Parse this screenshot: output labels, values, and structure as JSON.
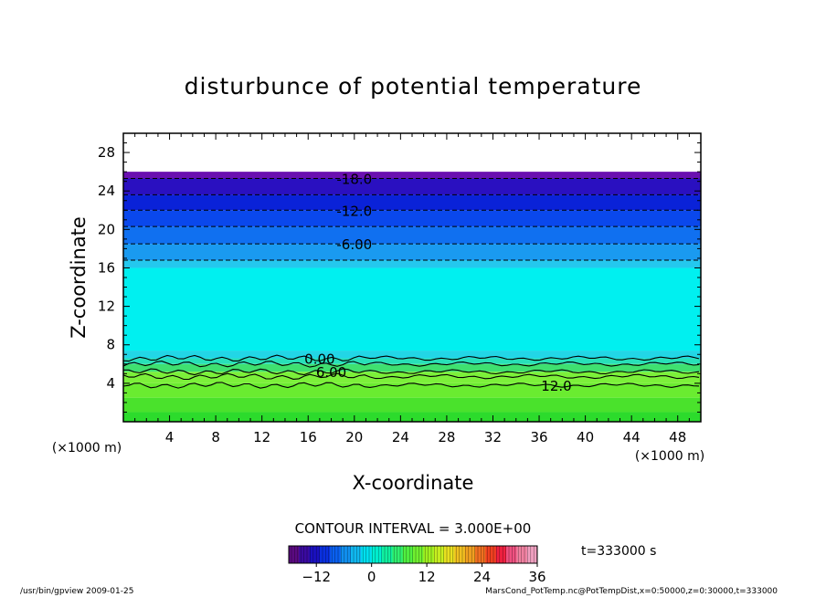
{
  "chart_data": {
    "type": "heatmap",
    "title": "disturbunce of potential temperature",
    "xlabel": "X-coordinate",
    "ylabel": "Z-coordinate",
    "x_unit_label": "(×1000 m)",
    "y_unit_label": "(×1000 m)",
    "xlim": [
      0,
      50
    ],
    "ylim": [
      0,
      30
    ],
    "x_ticks": [
      4,
      8,
      12,
      16,
      20,
      24,
      28,
      32,
      36,
      40,
      44,
      48
    ],
    "y_ticks": [
      4,
      8,
      12,
      16,
      20,
      24,
      28
    ],
    "data_top": 26,
    "field_bands": [
      {
        "z0": 0.0,
        "z1": 1.0,
        "color": "#2cdb2c"
      },
      {
        "z0": 1.0,
        "z1": 2.5,
        "color": "#4ae22c"
      },
      {
        "z0": 2.5,
        "z1": 4.0,
        "color": "#6aec30"
      },
      {
        "z0": 4.0,
        "z1": 5.2,
        "color": "#7cf03a"
      },
      {
        "z0": 5.2,
        "z1": 6.0,
        "color": "#3fe070"
      },
      {
        "z0": 6.0,
        "z1": 6.6,
        "color": "#28e0b8"
      },
      {
        "z0": 6.6,
        "z1": 7.4,
        "color": "#22d6e6"
      },
      {
        "z0": 7.4,
        "z1": 16.0,
        "color": "#00f0f0"
      },
      {
        "z0": 16.0,
        "z1": 16.8,
        "color": "#24c8ee"
      },
      {
        "z0": 16.8,
        "z1": 18.5,
        "color": "#1a9af0"
      },
      {
        "z0": 18.5,
        "z1": 20.3,
        "color": "#1070f0"
      },
      {
        "z0": 20.3,
        "z1": 22.0,
        "color": "#0a48ec"
      },
      {
        "z0": 22.0,
        "z1": 23.6,
        "color": "#0a22d8"
      },
      {
        "z0": 23.6,
        "z1": 25.3,
        "color": "#2a10c0"
      },
      {
        "z0": 25.3,
        "z1": 26.0,
        "color": "#6a10b0"
      }
    ],
    "contours": [
      {
        "level": -18.0,
        "z": 25.3,
        "dashed": true,
        "label": "-18.0",
        "label_x": 20
      },
      {
        "level": -15.0,
        "z": 23.6,
        "dashed": true,
        "label": "",
        "label_x": null
      },
      {
        "level": -12.0,
        "z": 22.0,
        "dashed": true,
        "label": "-12.0",
        "label_x": 20
      },
      {
        "level": -9.0,
        "z": 20.3,
        "dashed": true,
        "label": "",
        "label_x": null
      },
      {
        "level": -6.0,
        "z": 18.5,
        "dashed": true,
        "label": "-6.00",
        "label_x": 20
      },
      {
        "level": -3.0,
        "z": 16.8,
        "dashed": true,
        "label": "",
        "label_x": null
      },
      {
        "level": 0.0,
        "z": 6.6,
        "dashed": false,
        "label": "0.00",
        "label_x": 17
      },
      {
        "level": 3.0,
        "z": 6.0,
        "dashed": false,
        "label": "",
        "label_x": null
      },
      {
        "level": 6.0,
        "z": 5.2,
        "dashed": false,
        "label": "6.00",
        "label_x": 18
      },
      {
        "level": 9.0,
        "z": 4.7,
        "dashed": false,
        "label": "",
        "label_x": null
      },
      {
        "level": 12.0,
        "z": 3.8,
        "dashed": false,
        "label": "12.0",
        "label_x": 37.5
      }
    ],
    "contour_interval_label": "CONTOUR INTERVAL = 3.000E+00",
    "colorbar": {
      "min": -18,
      "max": 36,
      "ticks": [
        -12,
        0,
        12,
        24,
        36
      ],
      "colors": [
        "#5a0a80",
        "#3a0aa0",
        "#1a10c0",
        "#0a30e0",
        "#0a60f0",
        "#1090f0",
        "#10b8f0",
        "#00e0f0",
        "#00f0d0",
        "#10f0a0",
        "#30f070",
        "#50f040",
        "#70f030",
        "#a0f020",
        "#c8f020",
        "#e8e020",
        "#f0c020",
        "#f0a020",
        "#f07020",
        "#f04020",
        "#f02040",
        "#f05080",
        "#f080a0",
        "#f0a0c0"
      ]
    },
    "time_label": "t=333000 s"
  },
  "footer": {
    "left": "/usr/bin/gpview   2009-01-25",
    "right": "MarsCond_PotTemp.nc@PotTempDist,x=0:50000,z=0:30000,t=333000"
  }
}
